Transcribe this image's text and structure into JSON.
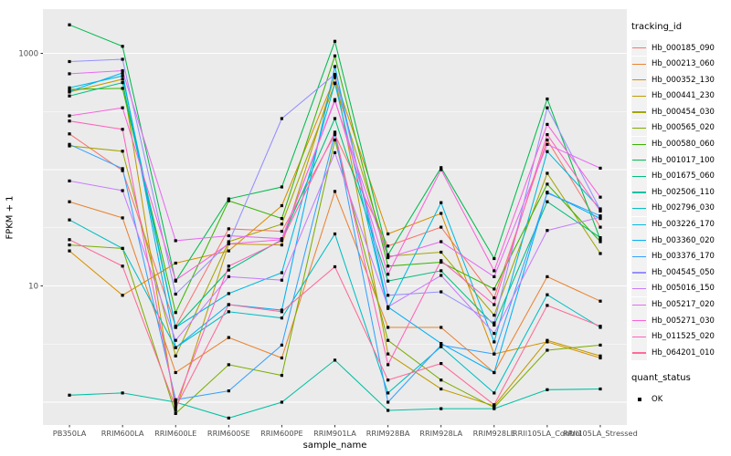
{
  "chart_data": {
    "type": "line",
    "title": "",
    "xlabel": "sample_name",
    "ylabel": "FPKM + 1",
    "legend_title": "tracking_id",
    "legend_position": "right",
    "grid": true,
    "y_scale": "log10",
    "y_tick_labels": [
      "1000",
      "10"
    ],
    "y_tick_values": [
      1000,
      10
    ],
    "ylim": [
      0.7,
      1800
    ],
    "point_marker": "black-square",
    "x_categories": [
      "PB350LA",
      "RRIM600LA",
      "RRIM600LE",
      "RRIM600SE",
      "RRIM600PE",
      "RRIM901LA",
      "RRIM928BA",
      "RRIM928LA",
      "RRIM928LE",
      "RRII105LA_Control",
      "RRII105LA_Stressed"
    ],
    "series": [
      {
        "name": "Hb_000185_090",
        "color": "#F8766D",
        "values": [
          203,
          98,
          4.5,
          31,
          29.5,
          200,
          22,
          32,
          7.9,
          180,
          32
        ]
      },
      {
        "name": "Hb_000213_060",
        "color": "#EA8331",
        "values": [
          53,
          38.5,
          1.8,
          3.6,
          2.4,
          65,
          4.4,
          4.4,
          1.8,
          12,
          7.4
        ]
      },
      {
        "name": "Hb_000352_130",
        "color": "#D89000",
        "values": [
          20,
          8.3,
          15.7,
          20,
          49,
          620,
          28,
          42,
          2.6,
          3.3,
          2.4
        ]
      },
      {
        "name": "Hb_000441_230",
        "color": "#C09B00",
        "values": [
          465,
          600,
          0.85,
          23,
          22.5,
          640,
          2.6,
          1.3,
          0.93,
          3.4,
          2.5
        ]
      },
      {
        "name": "Hb_000454_030",
        "color": "#A3A500",
        "values": [
          160,
          144,
          2.5,
          24,
          34,
          550,
          18,
          19.5,
          5.6,
          93,
          19
        ]
      },
      {
        "name": "Hb_000565_020",
        "color": "#7CAE00",
        "values": [
          22.5,
          21,
          0.8,
          2.1,
          1.7,
          180,
          3.4,
          1.55,
          0.9,
          2.8,
          3.1
        ]
      },
      {
        "name": "Hb_000580_060",
        "color": "#39B600",
        "values": [
          490,
          500,
          5.9,
          54,
          38,
          950,
          14.8,
          16,
          9.4,
          75,
          24
        ]
      },
      {
        "name": "Hb_001017_100",
        "color": "#00BB4E",
        "values": [
          1760,
          1150,
          11,
          56,
          71,
          1270,
          18.5,
          104,
          17.2,
          405,
          25
        ]
      },
      {
        "name": "Hb_001675_060",
        "color": "#00BF7D",
        "values": [
          430,
          560,
          4.4,
          13.7,
          25,
          275,
          11,
          13.5,
          4.6,
          53,
          26
        ]
      },
      {
        "name": "Hb_002506_110",
        "color": "#00C1A3",
        "values": [
          1.15,
          1.2,
          1.0,
          0.73,
          1.0,
          2.3,
          0.85,
          0.88,
          0.88,
          1.28,
          1.3
        ]
      },
      {
        "name": "Hb_002796_030",
        "color": "#00BFC4",
        "values": [
          37,
          21,
          2.95,
          6.0,
          5.3,
          28,
          1.2,
          3.0,
          1.2,
          8.4,
          4.4
        ]
      },
      {
        "name": "Hb_003226_170",
        "color": "#00BAE0",
        "values": [
          505,
          640,
          4.4,
          8.6,
          13,
          555,
          6.4,
          52,
          3.3,
          143,
          46
        ]
      },
      {
        "name": "Hb_003360_020",
        "color": "#00B0F6",
        "values": [
          470,
          680,
          2.95,
          6.9,
          6.2,
          770,
          6.6,
          3.2,
          1.8,
          64,
          38
        ]
      },
      {
        "name": "Hb_003376_170",
        "color": "#35A2FF",
        "values": [
          165,
          102,
          1.05,
          1.25,
          3.1,
          205,
          1.0,
          3.1,
          2.6,
          63,
          40
        ]
      },
      {
        "name": "Hb_004545_050",
        "color": "#9590FF",
        "values": [
          850,
          890,
          8.5,
          23.5,
          275,
          660,
          8.3,
          8.9,
          4.8,
          340,
          45
        ]
      },
      {
        "name": "Hb_005016_150",
        "color": "#C77CFF",
        "values": [
          80,
          66,
          3.4,
          12,
          11.2,
          140,
          6.6,
          12.3,
          3.9,
          30,
          39
        ]
      },
      {
        "name": "Hb_005217_020",
        "color": "#E76BF3",
        "values": [
          667,
          710,
          24.5,
          27,
          25.5,
          390,
          17.5,
          24,
          12,
          165,
          103
        ]
      },
      {
        "name": "Hb_005271_030",
        "color": "#FA62DB",
        "values": [
          290,
          340,
          11.2,
          23,
          25,
          400,
          12.6,
          100,
          13.5,
          245,
          58
        ]
      },
      {
        "name": "Hb_011525_020",
        "color": "#FF62BC",
        "values": [
          262,
          222,
          0.95,
          14.8,
          24.5,
          210,
          2.1,
          16.5,
          6.9,
          200,
          44
        ]
      },
      {
        "name": "Hb_064201_010",
        "color": "#FF6A98",
        "values": [
          25,
          14.8,
          0.9,
          6.9,
          6.0,
          14.6,
          1.55,
          2.15,
          0.95,
          6.8,
          4.5
        ]
      }
    ],
    "quant_legend": {
      "title": "quant_status",
      "items": [
        {
          "label": "OK",
          "marker": "black-square"
        }
      ]
    }
  },
  "colors": {
    "panel_bg": "#EBEBEB",
    "grid": "#FFFFFF",
    "tick_text": "#4D4D4D",
    "axis_title_text": "#000000",
    "point": "#000000",
    "legend_key_bg": "#F2F2F2",
    "tick_mark": "#333333"
  }
}
